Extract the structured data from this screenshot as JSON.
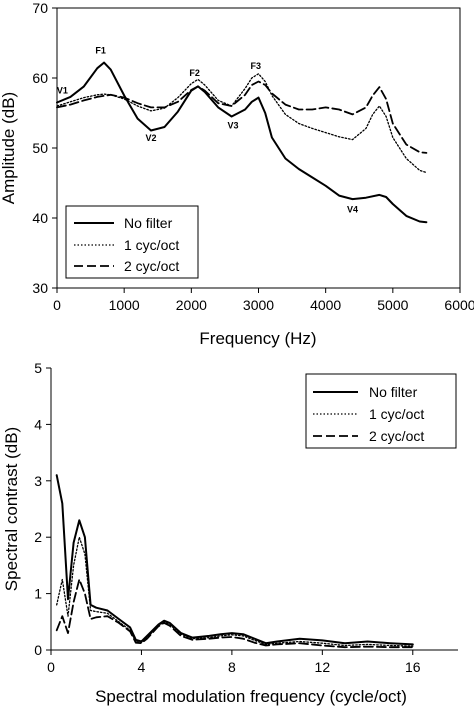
{
  "chart_data": [
    {
      "type": "line",
      "xlabel": "Frequency (Hz)",
      "ylabel": "Amplitude (dB)",
      "xlim": [
        0,
        6000
      ],
      "ylim": [
        30,
        70
      ],
      "xticks": [
        0,
        1000,
        2000,
        3000,
        4000,
        5000,
        6000
      ],
      "yticks": [
        30,
        40,
        50,
        60,
        70
      ],
      "legend_position": "bottom-left",
      "series": [
        {
          "name": "No filter",
          "style": "solid",
          "x": [
            0,
            200,
            400,
            600,
            700,
            800,
            1000,
            1200,
            1400,
            1600,
            1800,
            2000,
            2100,
            2200,
            2400,
            2600,
            2800,
            2900,
            3000,
            3100,
            3200,
            3400,
            3600,
            3800,
            4000,
            4200,
            4400,
            4600,
            4800,
            4900,
            5000,
            5200,
            5400,
            5500
          ],
          "y": [
            56.5,
            57.3,
            58.8,
            61.4,
            62.2,
            61.2,
            57.5,
            54.2,
            52.5,
            53.0,
            55.2,
            58.2,
            58.8,
            58.0,
            55.8,
            54.5,
            55.5,
            56.6,
            57.2,
            55.0,
            51.5,
            48.5,
            47.0,
            45.8,
            44.6,
            43.2,
            42.7,
            42.9,
            43.3,
            43.0,
            42.0,
            40.3,
            39.5,
            39.4
          ]
        },
        {
          "name": "1 cyc/oct",
          "style": "dotted",
          "x": [
            0,
            200,
            400,
            600,
            700,
            800,
            1000,
            1200,
            1400,
            1600,
            1800,
            2000,
            2100,
            2200,
            2400,
            2600,
            2800,
            2900,
            3000,
            3100,
            3200,
            3400,
            3600,
            3800,
            4000,
            4200,
            4400,
            4600,
            4700,
            4800,
            4900,
            5000,
            5200,
            5400,
            5500
          ],
          "y": [
            56.0,
            56.6,
            57.2,
            57.6,
            57.7,
            57.6,
            57.0,
            56.0,
            55.3,
            55.7,
            57.2,
            59.2,
            59.8,
            59.0,
            56.8,
            56.0,
            58.5,
            60.0,
            60.6,
            59.5,
            57.5,
            54.8,
            53.5,
            52.8,
            52.2,
            51.6,
            51.2,
            52.8,
            54.8,
            56.0,
            54.5,
            51.5,
            48.5,
            46.8,
            46.5
          ]
        },
        {
          "name": "2 cyc/oct",
          "style": "dashed",
          "x": [
            0,
            200,
            400,
            600,
            800,
            1000,
            1200,
            1400,
            1600,
            1800,
            2000,
            2100,
            2200,
            2400,
            2600,
            2800,
            2900,
            3000,
            3100,
            3200,
            3400,
            3600,
            3800,
            4000,
            4200,
            4400,
            4600,
            4700,
            4800,
            4900,
            5000,
            5200,
            5400,
            5500
          ],
          "y": [
            55.8,
            56.2,
            56.8,
            57.3,
            57.6,
            57.2,
            56.4,
            55.8,
            55.8,
            56.6,
            58.3,
            58.8,
            58.2,
            56.4,
            56.0,
            57.6,
            59.0,
            59.5,
            59.0,
            57.8,
            56.2,
            55.5,
            55.5,
            55.8,
            55.5,
            54.8,
            55.8,
            57.5,
            58.7,
            57.0,
            53.5,
            50.5,
            49.4,
            49.3
          ]
        }
      ],
      "annotations": [
        {
          "text": "F1",
          "x": 650,
          "y": 63.5
        },
        {
          "text": "F2",
          "x": 2050,
          "y": 60.3
        },
        {
          "text": "F3",
          "x": 2960,
          "y": 61.3
        },
        {
          "text": "V1",
          "x": 80,
          "y": 57.8
        },
        {
          "text": "V2",
          "x": 1400,
          "y": 51.0
        },
        {
          "text": "V3",
          "x": 2620,
          "y": 52.8
        },
        {
          "text": "V4",
          "x": 4400,
          "y": 40.8
        }
      ]
    },
    {
      "type": "line",
      "xlabel": "Spectral modulation frequency (cycle/oct)",
      "ylabel": "Spectral contrast (dB)",
      "xlim": [
        0,
        18
      ],
      "ylim": [
        0,
        5
      ],
      "xticks": [
        0,
        4,
        8,
        12,
        16
      ],
      "yticks": [
        0,
        1,
        2,
        3,
        4,
        5
      ],
      "legend_position": "top-right",
      "series": [
        {
          "name": "No filter",
          "style": "solid",
          "x": [
            0.25,
            0.5,
            0.75,
            1.0,
            1.25,
            1.5,
            1.75,
            2.0,
            2.5,
            3.0,
            3.5,
            3.75,
            4.0,
            4.25,
            4.75,
            5.0,
            5.25,
            5.75,
            6.25,
            7.0,
            7.5,
            8.0,
            8.5,
            9.0,
            9.5,
            10.0,
            11.0,
            12.0,
            13.0,
            14.0,
            15.0,
            16.0
          ],
          "y": [
            3.1,
            2.6,
            0.9,
            1.9,
            2.3,
            2.0,
            0.8,
            0.75,
            0.7,
            0.55,
            0.4,
            0.18,
            0.15,
            0.25,
            0.45,
            0.52,
            0.48,
            0.3,
            0.22,
            0.25,
            0.28,
            0.3,
            0.28,
            0.2,
            0.12,
            0.15,
            0.2,
            0.17,
            0.12,
            0.15,
            0.12,
            0.1
          ]
        },
        {
          "name": "1 cyc/oct",
          "style": "dotted",
          "x": [
            0.25,
            0.5,
            0.75,
            1.0,
            1.25,
            1.5,
            1.75,
            2.0,
            2.5,
            3.0,
            3.5,
            3.75,
            4.0,
            4.25,
            4.75,
            5.0,
            5.25,
            5.75,
            6.25,
            7.0,
            7.5,
            8.0,
            8.5,
            9.0,
            9.5,
            10.0,
            11.0,
            12.0,
            13.0,
            14.0,
            15.0,
            16.0
          ],
          "y": [
            0.8,
            1.25,
            0.6,
            1.5,
            2.0,
            1.7,
            0.7,
            0.68,
            0.65,
            0.5,
            0.35,
            0.15,
            0.13,
            0.22,
            0.43,
            0.5,
            0.45,
            0.28,
            0.2,
            0.22,
            0.25,
            0.27,
            0.25,
            0.17,
            0.1,
            0.12,
            0.15,
            0.12,
            0.08,
            0.1,
            0.08,
            0.07
          ]
        },
        {
          "name": "2 cyc/oct",
          "style": "dashed",
          "x": [
            0.25,
            0.5,
            0.75,
            1.0,
            1.25,
            1.5,
            1.75,
            2.0,
            2.5,
            3.0,
            3.5,
            3.75,
            4.0,
            4.25,
            4.75,
            5.0,
            5.25,
            5.75,
            6.25,
            7.0,
            7.5,
            8.0,
            8.5,
            9.0,
            9.5,
            10.0,
            11.0,
            12.0,
            13.0,
            14.0,
            15.0,
            16.0
          ],
          "y": [
            0.35,
            0.6,
            0.3,
            0.85,
            1.25,
            1.0,
            0.55,
            0.58,
            0.6,
            0.48,
            0.33,
            0.13,
            0.12,
            0.2,
            0.42,
            0.48,
            0.43,
            0.25,
            0.18,
            0.2,
            0.22,
            0.23,
            0.2,
            0.13,
            0.08,
            0.1,
            0.12,
            0.08,
            0.05,
            0.06,
            0.05,
            0.05
          ]
        }
      ]
    }
  ]
}
